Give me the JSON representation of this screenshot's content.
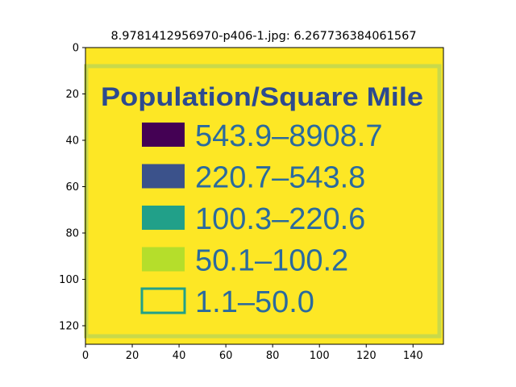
{
  "chart_data": {
    "type": "image",
    "title": "8.9781412956970-p406-1.jpg: 6.267736384061567",
    "xlabel": "",
    "ylabel": "",
    "xlim": [
      0,
      153
    ],
    "ylim": [
      128,
      0
    ],
    "x_ticks": [
      0,
      20,
      40,
      60,
      80,
      100,
      120,
      140
    ],
    "y_ticks": [
      0,
      20,
      40,
      60,
      80,
      100,
      120
    ],
    "grid": false,
    "background_color": "#fde725",
    "image_content": {
      "legend_title": "Population/Square Mile",
      "legend_entries": [
        {
          "label": "543.9–8908.7",
          "color": "#440154"
        },
        {
          "label": "220.7–543.8",
          "color": "#3b528b"
        },
        {
          "label": "100.3–220.6",
          "color": "#21a089"
        },
        {
          "label": "50.1–100.2",
          "color": "#b5de2b"
        },
        {
          "label": "1.1–50.0",
          "color": "#fde725"
        }
      ]
    }
  }
}
